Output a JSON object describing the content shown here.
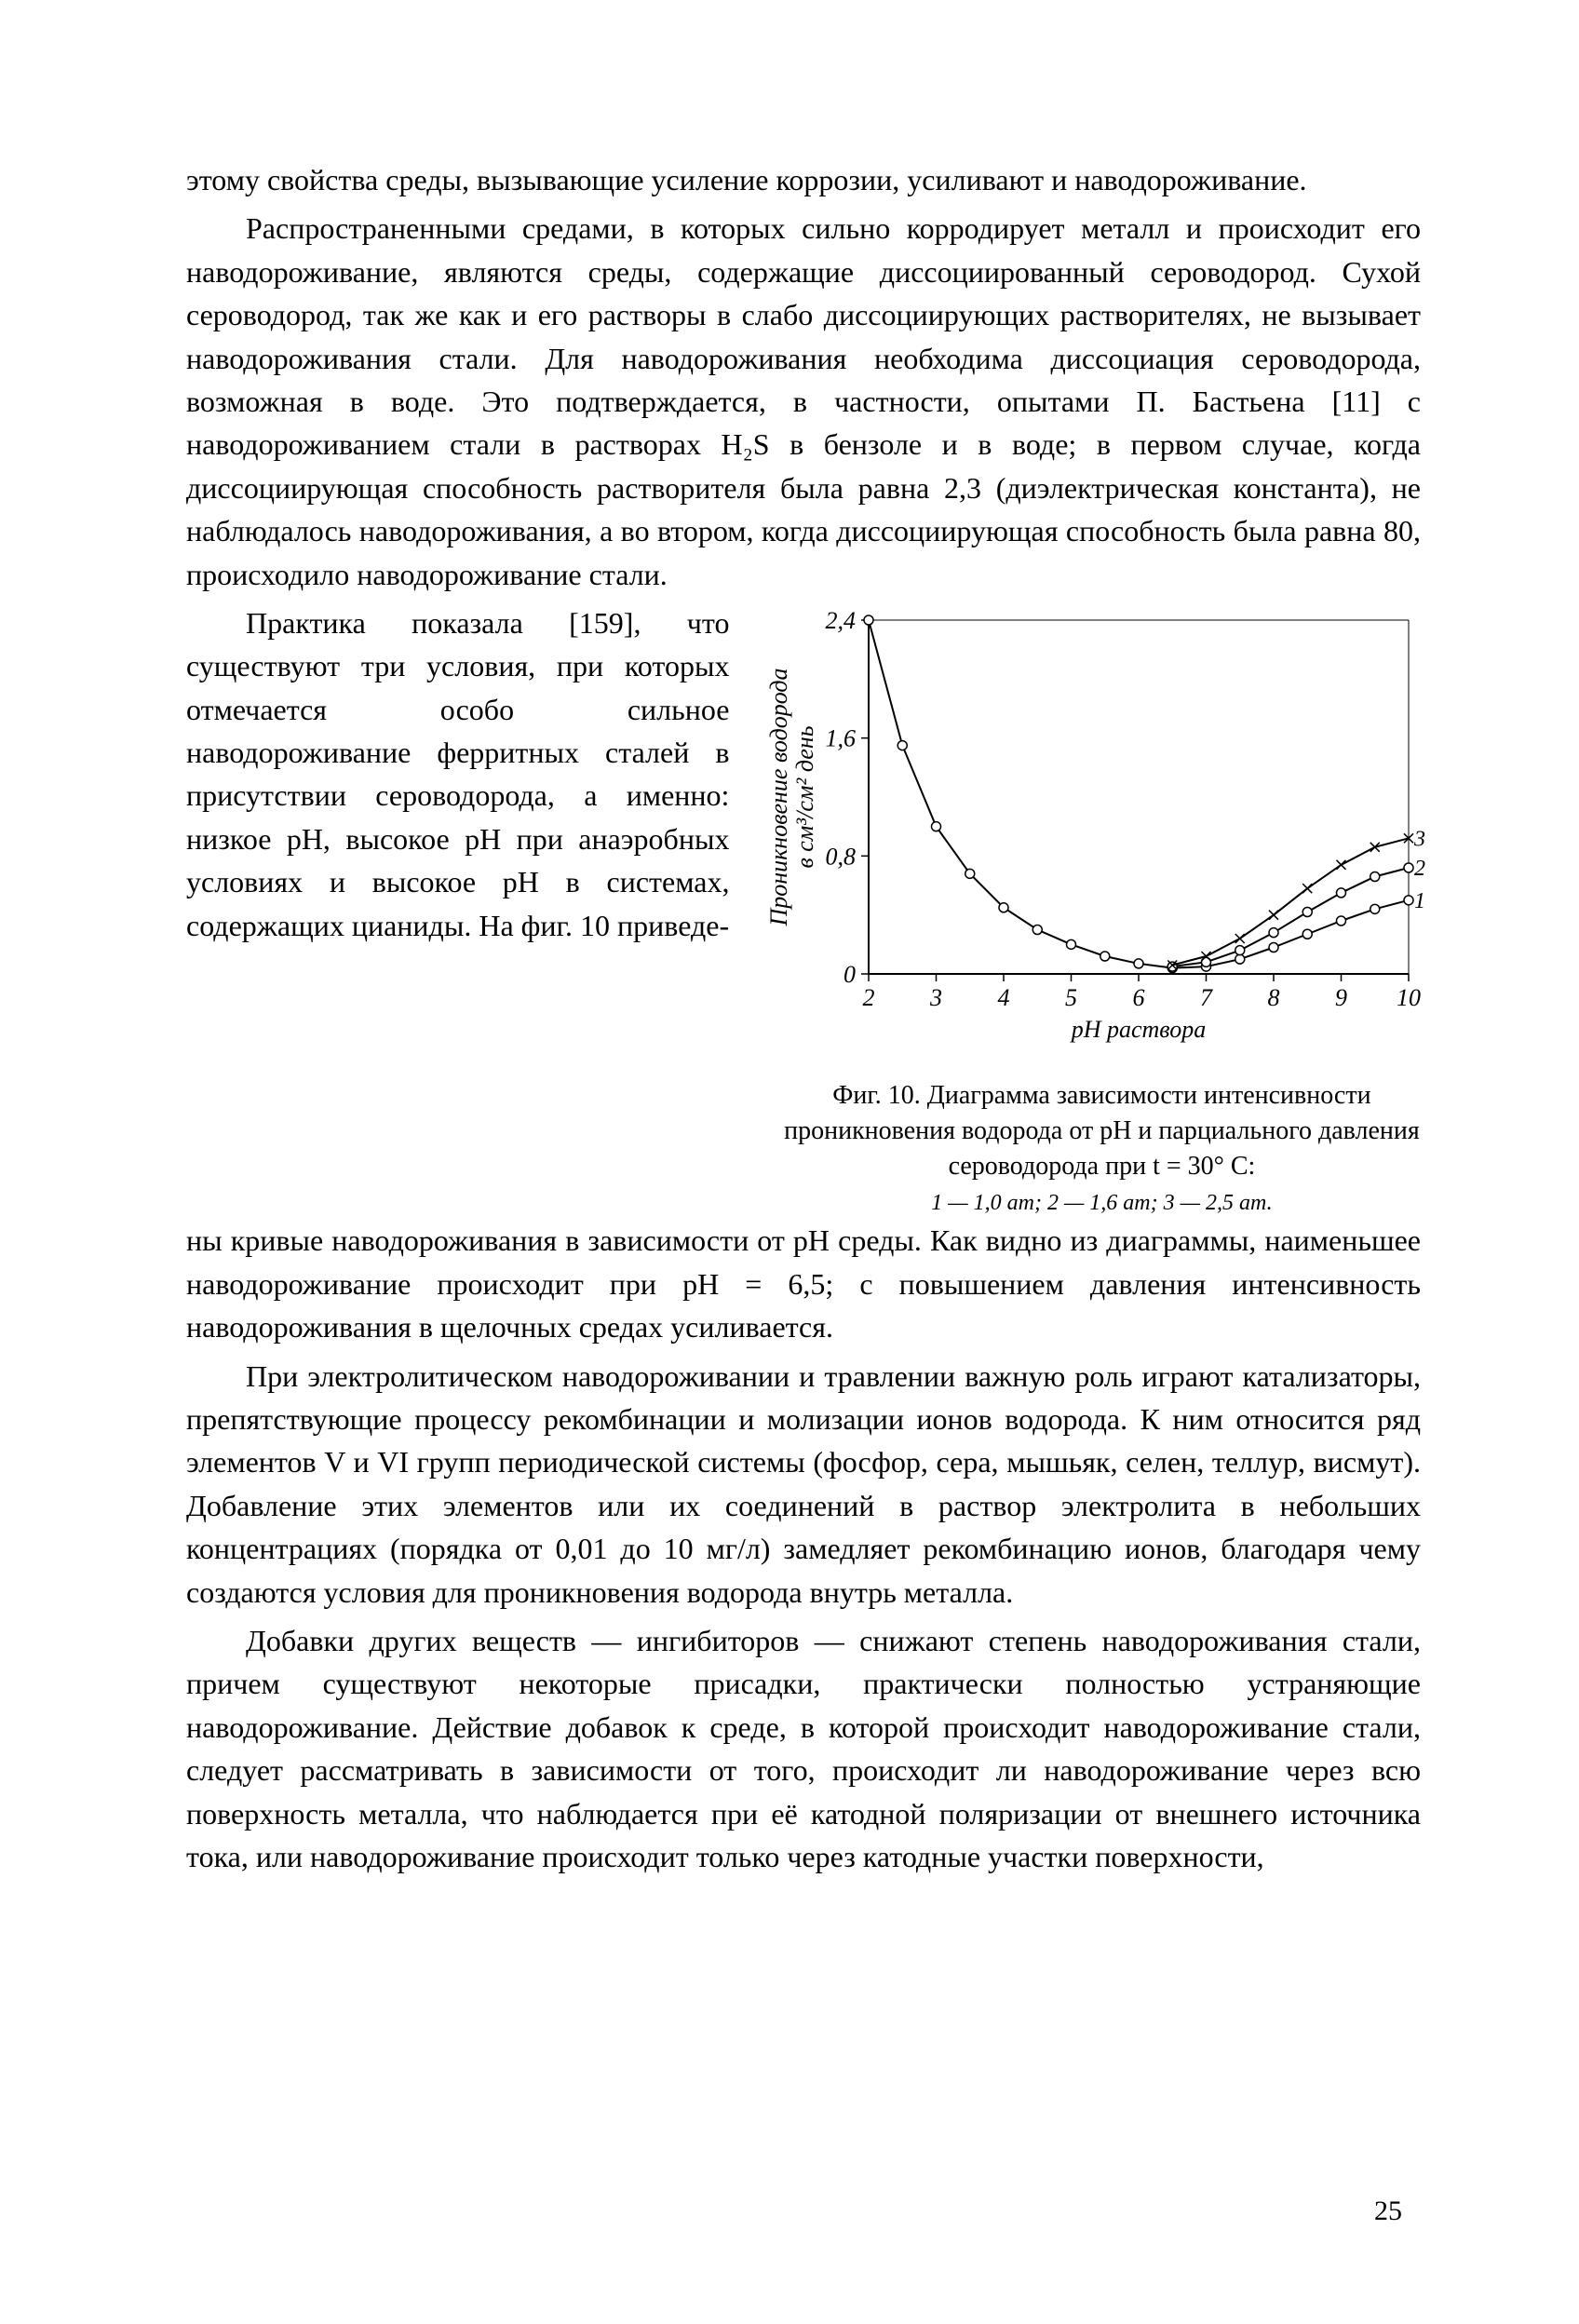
{
  "page_number": "25",
  "paragraphs": {
    "p1": "этому свойства среды, вызывающие усиление коррозии, усиливают и наводороживание.",
    "p2": "Распространенными средами, в которых сильно корродирует металл и происходит его наводороживание, являются среды, содержащие диссоциированный сероводород. Сухой сероводород, так же как и его растворы в слабо диссоциирующих растворителях, не вызывает наводороживания стали. Для наводороживания необходима диссоциация сероводорода, возможная в воде. Это подтверждается, в частности, опытами П. Бастьена [11] с наводороживанием стали в растворах H₂S в бензоле и в воде; в первом случае, когда диссоциирующая способность растворителя была равна 2,3 (диэлектрическая константа), не наблюдалось наводороживания, а во втором, когда диссоциирующая способность была равна 80, происходило наводороживание стали.",
    "p3_left": "Практика показала [159], что существуют три условия, при которых отмечается особо сильное наводороживание ферритных сталей в присутствии сероводорода, а именно: низкое pH, высокое pH при анаэробных условиях и высокое pH в системах, содержащих цианиды. На фиг. 10 приведе-",
    "p3_cont": "ны кривые наводороживания в зависимости от pH среды. Как видно из диаграммы, наименьшее наводороживание происходит при pH = 6,5; с повышением давления интенсивность наводороживания в щелочных средах усиливается.",
    "p4": "При электролитическом наводороживании и травлении важную роль играют катализаторы, препятствующие процессу рекомбинации и молизации ионов водорода. К ним относится ряд элементов V и VI групп периодической системы (фосфор, сера, мышьяк, селен, теллур, висмут). Добавление этих элементов или их соединений в раствор электролита в небольших концентрациях (порядка от 0,01 до 10 мг/л) замедляет рекомбинацию ионов, благодаря чему создаются условия для проникновения водорода внутрь металла.",
    "p5": "Добавки других веществ — ингибиторов — снижают степень наводороживания стали, причем существуют некоторые присадки, практически полностью устраняющие наводороживание. Действие добавок к среде, в которой происходит наводороживание стали, следует рассматривать в зависимости от того, происходит ли наводороживание через всю поверхность металла, что наблюдается при её катодной поляризации от внешнего источника тока, или наводороживание происходит только через катодные участки поверхности,"
  },
  "figure": {
    "caption_main": "Фиг. 10. Диаграмма зависимости интенсивности проникновения водорода от pH и парциального давления сероводорода при t = 30° C:",
    "caption_legend": "1 — 1,0 ат; 2 — 1,6 ат; 3 — 2,5 ат.",
    "chart": {
      "type": "line",
      "xlim": [
        2,
        10
      ],
      "ylim": [
        0,
        2.4
      ],
      "xticks": [
        2,
        3,
        4,
        5,
        6,
        7,
        8,
        9,
        10
      ],
      "yticks": [
        0,
        0.8,
        1.6,
        2.4
      ],
      "xlabel": "pН раствора",
      "ylabel": "Проникновение водорода\nв см³/см² день",
      "axis_color": "#000000",
      "grid_color": "#000000",
      "background_color": "#ffffff",
      "line_width": 2,
      "axis_fontsize": 26,
      "tick_fontsize": 26,
      "series": [
        {
          "name": "1",
          "label_end": "1",
          "marker": "circle",
          "color": "#000000",
          "points": [
            {
              "x": 2.0,
              "y": 2.4
            },
            {
              "x": 2.5,
              "y": 1.55
            },
            {
              "x": 3.0,
              "y": 1.0
            },
            {
              "x": 3.5,
              "y": 0.68
            },
            {
              "x": 4.0,
              "y": 0.45
            },
            {
              "x": 4.5,
              "y": 0.3
            },
            {
              "x": 5.0,
              "y": 0.2
            },
            {
              "x": 5.5,
              "y": 0.12
            },
            {
              "x": 6.0,
              "y": 0.07
            },
            {
              "x": 6.5,
              "y": 0.04
            },
            {
              "x": 7.0,
              "y": 0.05
            },
            {
              "x": 7.5,
              "y": 0.1
            },
            {
              "x": 8.0,
              "y": 0.18
            },
            {
              "x": 8.5,
              "y": 0.27
            },
            {
              "x": 9.0,
              "y": 0.36
            },
            {
              "x": 9.5,
              "y": 0.44
            },
            {
              "x": 10.0,
              "y": 0.5
            }
          ]
        },
        {
          "name": "2",
          "label_end": "2",
          "marker": "circle",
          "color": "#000000",
          "points": [
            {
              "x": 6.5,
              "y": 0.05
            },
            {
              "x": 7.0,
              "y": 0.08
            },
            {
              "x": 7.5,
              "y": 0.16
            },
            {
              "x": 8.0,
              "y": 0.28
            },
            {
              "x": 8.5,
              "y": 0.42
            },
            {
              "x": 9.0,
              "y": 0.55
            },
            {
              "x": 9.5,
              "y": 0.66
            },
            {
              "x": 10.0,
              "y": 0.72
            }
          ]
        },
        {
          "name": "3",
          "label_end": "3",
          "marker": "cross",
          "color": "#000000",
          "points": [
            {
              "x": 6.5,
              "y": 0.06
            },
            {
              "x": 7.0,
              "y": 0.12
            },
            {
              "x": 7.5,
              "y": 0.24
            },
            {
              "x": 8.0,
              "y": 0.4
            },
            {
              "x": 8.5,
              "y": 0.58
            },
            {
              "x": 9.0,
              "y": 0.74
            },
            {
              "x": 9.5,
              "y": 0.86
            },
            {
              "x": 10.0,
              "y": 0.92
            }
          ]
        }
      ]
    }
  }
}
